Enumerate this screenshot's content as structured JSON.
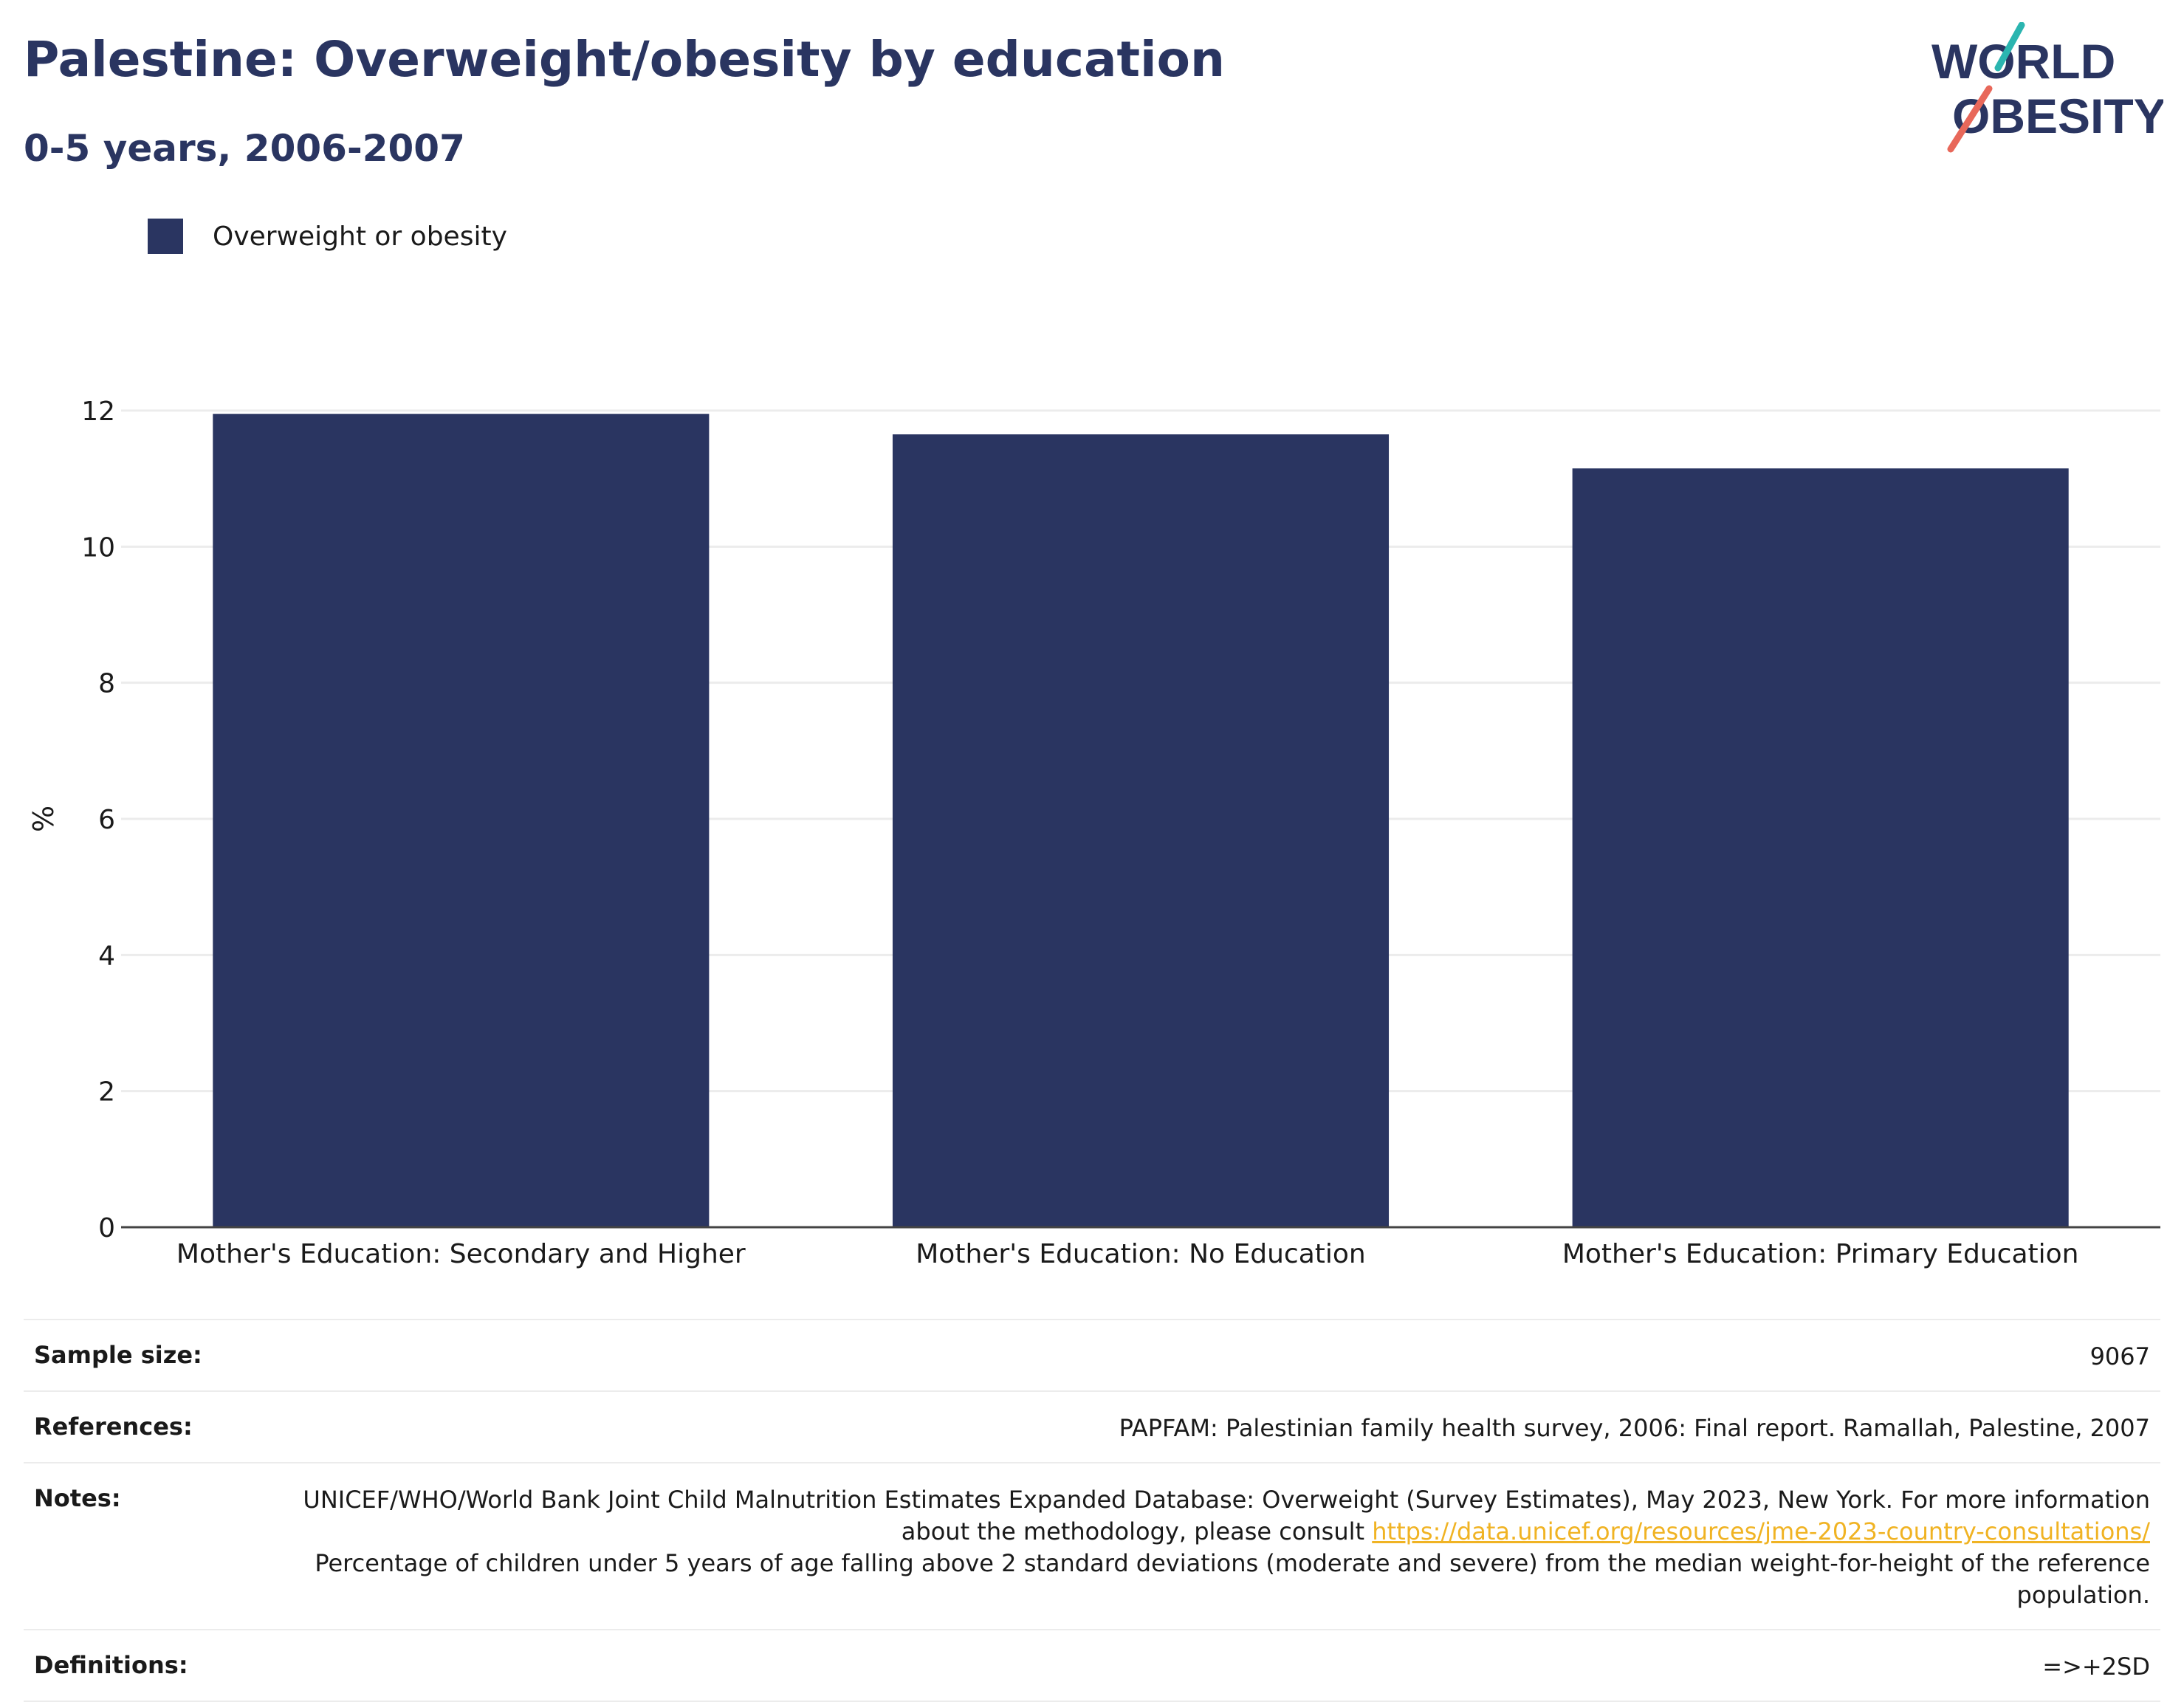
{
  "header": {
    "title": "Palestine: Overweight/obesity by education",
    "subtitle": "0-5 years, 2006-2007"
  },
  "logo": {
    "line1": "WORLD",
    "line2": "OBESITY"
  },
  "colors": {
    "bar": "#2a3561",
    "logo_teal": "#2bb5b0",
    "logo_coral": "#e8685a",
    "link": "#f0b323"
  },
  "legend": {
    "label": "Overweight or obesity"
  },
  "chart_data": {
    "type": "bar",
    "categories": [
      "Mother's Education: Secondary and Higher",
      "Mother's Education: No Education",
      "Mother's Education: Primary Education"
    ],
    "series": [
      {
        "name": "Overweight or obesity",
        "values": [
          11.95,
          11.65,
          11.15
        ]
      }
    ],
    "ylabel": "%",
    "ylim": [
      0,
      12
    ],
    "yticks": [
      0,
      2,
      4,
      6,
      8,
      10,
      12
    ],
    "grid": true,
    "legend_position": "top-left"
  },
  "meta": {
    "sample_size_label": "Sample size:",
    "sample_size_value": "9067",
    "references_label": "References:",
    "references_value": "PAPFAM: Palestinian family health survey, 2006: Final report. Ramallah, Palestine, 2007",
    "notes_label": "Notes:",
    "notes_text_1": "UNICEF/WHO/World Bank Joint Child Malnutrition Estimates Expanded Database: Overweight (Survey Estimates), May 2023, New York. For more information about the methodology, please consult",
    "notes_link": "https://data.unicef.org/resources/jme-2023-country-consultations/",
    "notes_text_2": "Percentage of children under 5 years of age falling above 2 standard deviations (moderate and severe) from the median weight-for-height of the reference population.",
    "definitions_label": "Definitions:",
    "definitions_value": "=>+2SD"
  }
}
